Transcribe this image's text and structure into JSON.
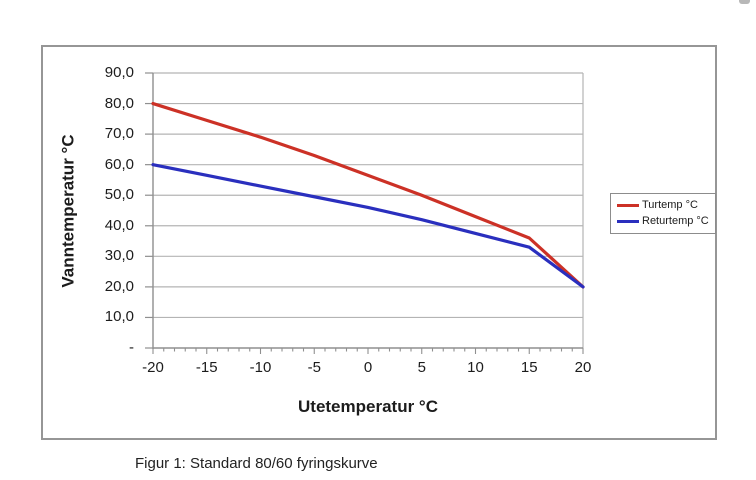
{
  "figure": {
    "caption": "Figur 1: Standard 80/60 fyringskurve"
  },
  "chart_data": {
    "type": "line",
    "title": "",
    "xlabel": "Utetemperatur °C",
    "ylabel": "Vanntemperatur °C",
    "xlim": [
      -20,
      20
    ],
    "ylim": [
      0,
      90
    ],
    "grid": true,
    "legend_position": "right",
    "x_ticks": [
      -20,
      -15,
      -10,
      -5,
      0,
      5,
      10,
      15,
      20
    ],
    "x_tick_labels": [
      "-20",
      "-15",
      "-10",
      "-5",
      "0",
      "5",
      "10",
      "15",
      "20"
    ],
    "x_minor_tick_step": 1,
    "y_ticks": [
      0,
      10,
      20,
      30,
      40,
      50,
      60,
      70,
      80,
      90
    ],
    "y_tick_labels": [
      "-",
      "10,0",
      "20,0",
      "30,0",
      "40,0",
      "50,0",
      "60,0",
      "70,0",
      "80,0",
      "90,0"
    ],
    "x": [
      -20,
      -15,
      -10,
      -5,
      0,
      5,
      10,
      15,
      20
    ],
    "series": [
      {
        "name": "Turtemp °C",
        "color": "#cc3126",
        "values": [
          80,
          74.5,
          69,
          63,
          56.5,
          50,
          43,
          36,
          20
        ]
      },
      {
        "name": "Returtemp °C",
        "color": "#2a2fbe",
        "values": [
          60,
          56.5,
          53,
          49.5,
          46,
          42,
          37.5,
          33,
          20
        ]
      }
    ]
  }
}
